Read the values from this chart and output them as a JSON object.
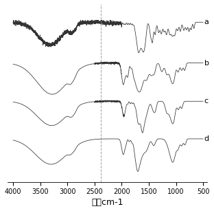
{
  "xlabel": "波长cm-1",
  "xlabel_fontsize": 9,
  "xticks": [
    4000,
    3500,
    3000,
    2500,
    2000,
    1500,
    1000,
    500
  ],
  "labels": [
    "a",
    "b",
    "c",
    "d"
  ],
  "dashed_line_x": 2380,
  "line_color": "#333333",
  "label_fontsize": 8,
  "offsets": [
    0.82,
    0.54,
    0.28,
    0.02
  ],
  "tick_fontsize": 7
}
